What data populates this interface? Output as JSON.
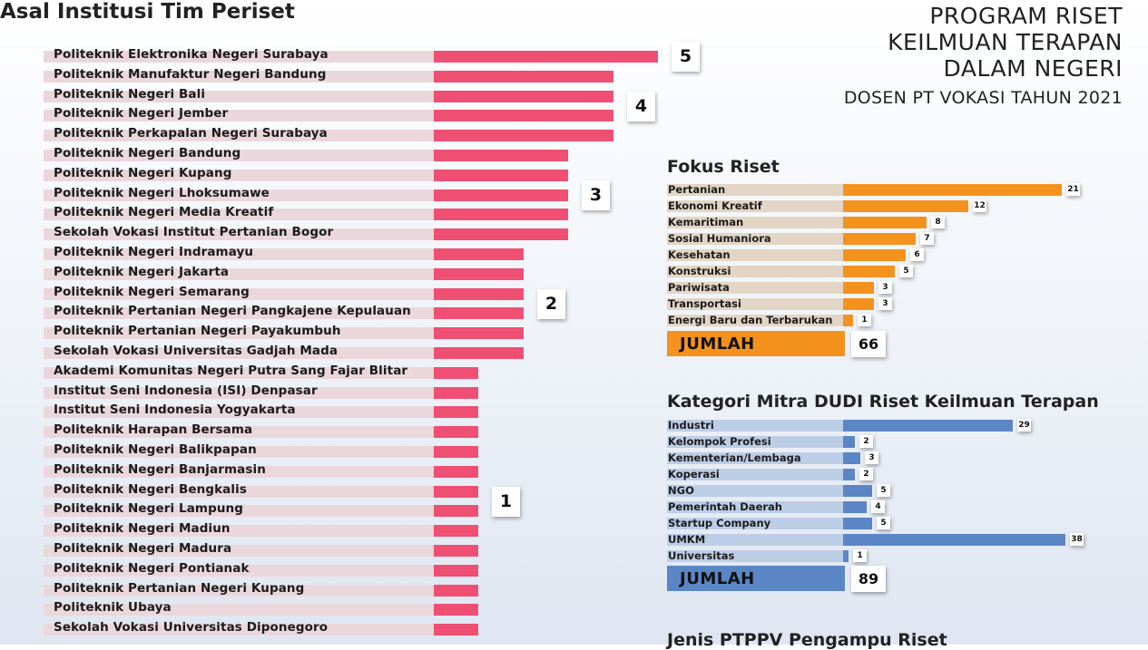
{
  "left_title": "Asal Institusi Tim Periset",
  "program": {
    "lines": [
      "PROGRAM RISET",
      "KEILMUAN TERAPAN",
      "DALAM NEGERI"
    ],
    "subtitle": "DOSEN PT VOKASI TAHUN 2021"
  },
  "colors": {
    "institusi_bar": "#ee4f73",
    "institusi_track": "#ead7dc",
    "fokus_bar": "#f5921e",
    "fokus_track": "#e3d5c5",
    "mitra_bar": "#5b86c6",
    "mitra_track": "#bccde6"
  },
  "chart_data": [
    {
      "type": "bar",
      "orientation": "horizontal",
      "title": "Asal Institusi Tim Periset",
      "categories": [
        "Politeknik Elektronika Negeri Surabaya",
        "Politeknik Manufaktur Negeri Bandung",
        "Politeknik Negeri Bali",
        "Politeknik Negeri Jember",
        "Politeknik Perkapalan Negeri Surabaya",
        "Politeknik Negeri Bandung",
        "Politeknik Negeri Kupang",
        "Politeknik Negeri Lhoksumawe",
        "Politeknik Negeri Media Kreatif",
        "Sekolah Vokasi Institut Pertanian Bogor",
        "Politeknik Negeri Indramayu",
        "Politeknik Negeri Jakarta",
        "Politeknik Negeri Semarang",
        "Politeknik Pertanian Negeri Pangkajene Kepulauan",
        "Politeknik Pertanian Negeri Payakumbuh",
        "Sekolah Vokasi Universitas Gadjah Mada",
        "Akademi Komunitas Negeri Putra Sang Fajar Blitar",
        "Institut Seni Indonesia (ISI) Denpasar",
        "Institut Seni Indonesia Yogyakarta",
        "Politeknik Harapan Bersama",
        "Politeknik Negeri Balikpapan",
        "Politeknik Negeri Banjarmasin",
        "Politeknik Negeri Bengkalis",
        "Politeknik Negeri Lampung",
        "Politeknik Negeri Madiun",
        "Politeknik Negeri Madura",
        "Politeknik Negeri Pontianak",
        "Politeknik Pertanian Negeri Kupang",
        "Politeknik Ubaya",
        "Sekolah Vokasi Universitas Diponegoro"
      ],
      "values": [
        5,
        4,
        4,
        4,
        4,
        3,
        3,
        3,
        3,
        3,
        2,
        2,
        2,
        2,
        2,
        2,
        1,
        1,
        1,
        1,
        1,
        1,
        1,
        1,
        1,
        1,
        1,
        1,
        1,
        1
      ],
      "group_labels": [
        {
          "value": "5",
          "from": 0,
          "to": 0
        },
        {
          "value": "4",
          "from": 1,
          "to": 4
        },
        {
          "value": "3",
          "from": 5,
          "to": 9
        },
        {
          "value": "2",
          "from": 10,
          "to": 15
        },
        {
          "value": "1",
          "from": 16,
          "to": 29
        }
      ]
    },
    {
      "type": "bar",
      "orientation": "horizontal",
      "title": "Fokus Riset",
      "categories": [
        "Pertanian",
        "Ekonomi Kreatif",
        "Kemaritiman",
        "Sosial Humaniora",
        "Kesehatan",
        "Konstruksi",
        "Pariwisata",
        "Transportasi",
        "Energi Baru dan Terbarukan"
      ],
      "values": [
        21,
        12,
        8,
        7,
        6,
        5,
        3,
        3,
        1
      ],
      "total_label": "JUMLAH",
      "total": 66
    },
    {
      "type": "bar",
      "orientation": "horizontal",
      "title": "Kategori Mitra DUDI Riset Keilmuan Terapan",
      "categories": [
        "Industri",
        "Kelompok Profesi",
        "Kementerian/Lembaga",
        "Koperasi",
        "NGO",
        "Pemerintah Daerah",
        "Startup Company",
        "UMKM",
        "Universitas"
      ],
      "values": [
        29,
        2,
        3,
        2,
        5,
        4,
        5,
        38,
        1
      ],
      "total_label": "JUMLAH",
      "total": 89
    }
  ],
  "next_section_title": "Jenis PTPPV Pengampu Riset"
}
